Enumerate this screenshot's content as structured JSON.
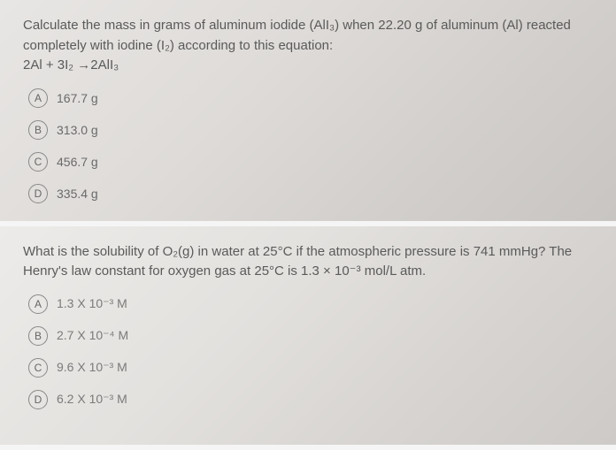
{
  "question1": {
    "text_line1": "Calculate the mass in grams of aluminum iodide (AlI₃) when 22.20 g of aluminum (Al) reacted",
    "text_line2": "completely with iodine (I₂) according to this equation:",
    "equation": "2Al + 3I₂ →2AlI₃",
    "options": {
      "A": "167.7 g",
      "B": "313.0 g",
      "C": "456.7 g",
      "D": "335.4 g"
    },
    "styling": {
      "background_gradient": [
        "#e8e6e4",
        "#dedbd8",
        "#d2cfcc",
        "#c8c5c2"
      ],
      "text_color": "#5a5a5a",
      "option_text_color": "#6a6a6a",
      "letter_border_color": "#888",
      "font_size_question": 15,
      "font_size_option": 14
    }
  },
  "question2": {
    "text_line1": "What is the solubility of O₂(g) in water at 25°C if the atmospheric pressure is 741 mmHg? The Henry's",
    "text_line2": "law constant for oxygen gas at 25°C is 1.3 × 10⁻³ mol/L atm.",
    "options": {
      "A": "1.3 X 10⁻³ M",
      "B": "2.7 X 10⁻⁴ M",
      "C": "9.6 X 10⁻³ M",
      "D": "6.2 X 10⁻³ M"
    },
    "styling": {
      "background_gradient": [
        "#ecebe9",
        "#e3e1de",
        "#d7d4d1",
        "#cdcac7"
      ],
      "text_color": "#5a5a5a",
      "option_text_color": "#7a7a7a",
      "letter_border_color": "#888",
      "font_size_question": 15,
      "font_size_option": 14
    }
  }
}
